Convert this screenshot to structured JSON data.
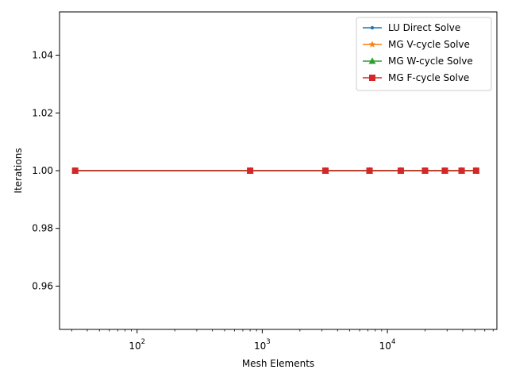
{
  "chart_data": {
    "type": "line",
    "title": "",
    "xlabel": "Mesh Elements",
    "ylabel": "Iterations",
    "xscale": "log",
    "xlim": [
      24,
      75000
    ],
    "ylim": [
      0.945,
      1.055
    ],
    "grid": false,
    "legend_position": "top-right",
    "x": [
      32,
      800,
      3200,
      7200,
      12800,
      20000,
      28800,
      39200,
      51200
    ],
    "x_ticks": [
      {
        "value": 100,
        "base": "10",
        "exp": "2"
      },
      {
        "value": 1000,
        "base": "10",
        "exp": "3"
      },
      {
        "value": 10000,
        "base": "10",
        "exp": "4"
      }
    ],
    "y_ticks": [
      "0.96",
      "0.98",
      "1.00",
      "1.02",
      "1.04"
    ],
    "y_tick_values": [
      0.96,
      0.98,
      1.0,
      1.02,
      1.04
    ],
    "series": [
      {
        "name": "LU Direct Solve",
        "color": "#1f77b4",
        "marker": "point",
        "values": [
          1,
          1,
          1,
          1,
          1,
          1,
          1,
          1,
          1
        ]
      },
      {
        "name": "MG V-cycle Solve",
        "color": "#ff7f0e",
        "marker": "star",
        "values": [
          1,
          1,
          1,
          1,
          1,
          1,
          1,
          1,
          1
        ]
      },
      {
        "name": "MG W-cycle Solve",
        "color": "#2ca02c",
        "marker": "triangle",
        "values": [
          1,
          1,
          1,
          1,
          1,
          1,
          1,
          1,
          1
        ]
      },
      {
        "name": "MG F-cycle Solve",
        "color": "#d62728",
        "marker": "square",
        "values": [
          1,
          1,
          1,
          1,
          1,
          1,
          1,
          1,
          1
        ]
      }
    ]
  }
}
